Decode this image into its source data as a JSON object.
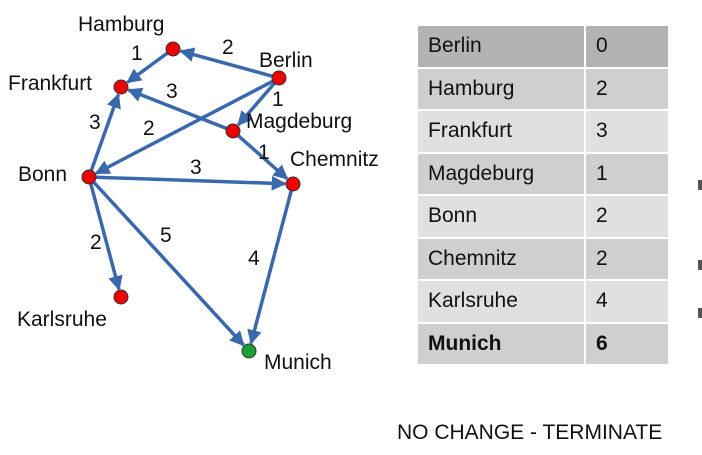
{
  "graph": {
    "nodes": [
      {
        "id": "hamburg",
        "name": "Hamburg",
        "color": "#ee0000"
      },
      {
        "id": "berlin",
        "name": "Berlin",
        "color": "#ee0000"
      },
      {
        "id": "frankfurt",
        "name": "Frankfurt",
        "color": "#ee0000"
      },
      {
        "id": "magdeburg",
        "name": "Magdeburg",
        "color": "#ee0000"
      },
      {
        "id": "bonn",
        "name": "Bonn",
        "color": "#ee0000"
      },
      {
        "id": "chemnitz",
        "name": "Chemnitz",
        "color": "#ee0000"
      },
      {
        "id": "karlsruhe",
        "name": "Karlsruhe",
        "color": "#ee0000"
      },
      {
        "id": "munich",
        "name": "Munich",
        "color": "#1aa033"
      }
    ],
    "edges": [
      {
        "from": "berlin",
        "to": "hamburg",
        "weight": "2"
      },
      {
        "from": "hamburg",
        "to": "frankfurt",
        "weight": "1"
      },
      {
        "from": "berlin",
        "to": "magdeburg",
        "weight": "1"
      },
      {
        "from": "berlin",
        "to": "bonn",
        "weight": "2"
      },
      {
        "from": "magdeburg",
        "to": "frankfurt",
        "weight": "3"
      },
      {
        "from": "bonn",
        "to": "frankfurt",
        "weight": "3"
      },
      {
        "from": "magdeburg",
        "to": "chemnitz",
        "weight": "1"
      },
      {
        "from": "bonn",
        "to": "chemnitz",
        "weight": "3"
      },
      {
        "from": "bonn",
        "to": "karlsruhe",
        "weight": "2"
      },
      {
        "from": "bonn",
        "to": "munich",
        "weight": "5"
      },
      {
        "from": "chemnitz",
        "to": "munich",
        "weight": "4"
      }
    ],
    "edge_color": "#3a68ad"
  },
  "table": {
    "rows": [
      {
        "city": "Berlin",
        "distance": "0",
        "bold": false
      },
      {
        "city": "Hamburg",
        "distance": "2",
        "bold": false
      },
      {
        "city": "Frankfurt",
        "distance": "3",
        "bold": false
      },
      {
        "city": "Magdeburg",
        "distance": "1",
        "bold": false
      },
      {
        "city": "Bonn",
        "distance": "2",
        "bold": false
      },
      {
        "city": "Chemnitz",
        "distance": "2",
        "bold": false
      },
      {
        "city": "Karlsruhe",
        "distance": "4",
        "bold": false
      },
      {
        "city": "Munich",
        "distance": "6",
        "bold": true
      }
    ]
  },
  "status": "NO CHANGE - TERMINATE"
}
